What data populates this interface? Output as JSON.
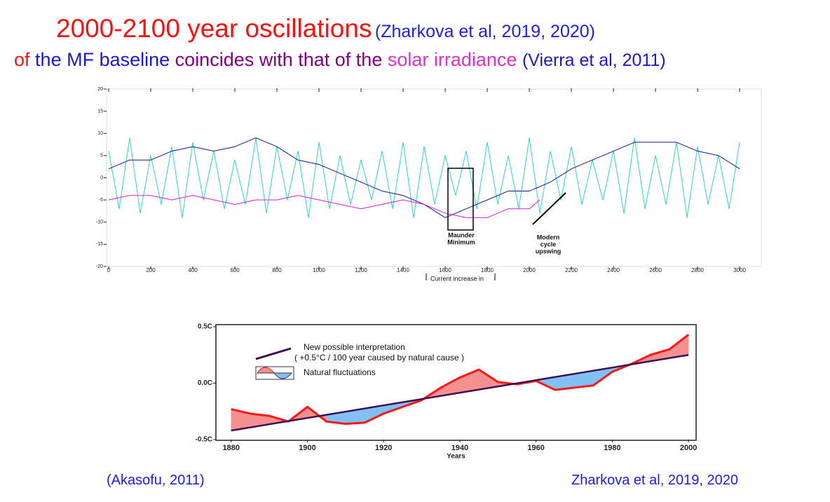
{
  "title": {
    "line1": [
      {
        "text": "2000-2100 year oscillations",
        "color": "#ff1010"
      },
      {
        "text": "(Zharkova et al, 2019, 2020)",
        "color": "#2020e0"
      }
    ],
    "line2": [
      {
        "text": "of",
        "color": "#ff1010"
      },
      {
        "text": "the MF baseline",
        "color": "#1a1acc"
      },
      {
        "text": "coincides with that of the",
        "color": "#800080"
      },
      {
        "text": "solar irradiance",
        "color": "#e030c8"
      },
      {
        "text": "(Vierra et al, 2011)",
        "color": "#1a1acc"
      }
    ]
  },
  "chart_data": [
    {
      "type": "line",
      "xlim": [
        -10,
        3103
      ],
      "ylim": [
        -20,
        20
      ],
      "xticks": [
        0,
        200,
        400,
        600,
        800,
        1000,
        1200,
        1400,
        1600,
        1800,
        2000,
        2200,
        2400,
        2600,
        2800,
        3000
      ],
      "yticks": [
        20,
        15,
        10,
        5,
        0,
        -5,
        -10,
        -15,
        -20
      ],
      "series": [
        {
          "color": "#30d0d0",
          "x": [
            0,
            50,
            100,
            150,
            200,
            250,
            300,
            350,
            400,
            450,
            500,
            550,
            600,
            650,
            700,
            750,
            800,
            850,
            900,
            950,
            1000,
            1050,
            1100,
            1150,
            1200,
            1250,
            1300,
            1350,
            1400,
            1450,
            1500,
            1550,
            1600,
            1650,
            1700,
            1750,
            1800,
            1850,
            1900,
            1950,
            2000,
            2050,
            2100,
            2150,
            2200,
            2250,
            2300,
            2350,
            2400,
            2450,
            2500,
            2550,
            2600,
            2650,
            2700,
            2750,
            2800,
            2850,
            2900,
            2950,
            3000
          ],
          "values": [
            6,
            -7,
            9,
            -8,
            5,
            -6,
            7,
            -9,
            8,
            -5,
            6,
            -7,
            4,
            -6,
            9,
            -8,
            7,
            -5,
            6,
            -9,
            8,
            -7,
            5,
            -6,
            4,
            -5,
            6,
            -7,
            8,
            -9,
            7,
            -6,
            5,
            -4,
            6,
            -7,
            8,
            -6,
            5,
            -7,
            9,
            -8,
            6,
            -5,
            7,
            -6,
            4,
            -5,
            6,
            -8,
            9,
            -7,
            5,
            -6,
            8,
            -9,
            7,
            -6,
            5,
            -7,
            8
          ]
        },
        {
          "color": "#0a1a8c",
          "x": [
            0,
            100,
            200,
            300,
            400,
            500,
            600,
            700,
            800,
            900,
            1000,
            1100,
            1200,
            1300,
            1400,
            1500,
            1600,
            1700,
            1800,
            1900,
            2000,
            2100,
            2200,
            2300,
            2400,
            2500,
            2600,
            2700,
            2800,
            2900,
            3000
          ],
          "values": [
            2,
            4,
            4,
            6,
            7,
            6,
            7,
            9,
            7,
            4,
            3,
            1,
            -1,
            -3,
            -4,
            -6,
            -9,
            -7,
            -5,
            -3,
            -3,
            -1,
            2,
            4,
            6,
            8,
            8,
            8,
            6,
            5,
            2
          ]
        },
        {
          "color": "#d020d0",
          "x": [
            0,
            100,
            200,
            300,
            400,
            500,
            600,
            700,
            800,
            900,
            1000,
            1100,
            1200,
            1300,
            1400,
            1500,
            1600,
            1700,
            1800,
            1900,
            2000,
            2050
          ],
          "values": [
            -5,
            -4,
            -4,
            -5,
            -4,
            -5,
            -6,
            -5,
            -5,
            -4,
            -5,
            -6,
            -7,
            -6,
            -5,
            -6,
            -8,
            -9,
            -9,
            -7,
            -7,
            -5
          ]
        }
      ],
      "annotations": [
        "Maunder",
        "Minimum",
        "Modern",
        "cycle",
        "upswing",
        "Current increase in"
      ]
    },
    {
      "type": "line",
      "xlim": [
        1876,
        2002
      ],
      "ylim": [
        -0.5,
        0.5
      ],
      "xticks": [
        1880,
        1900,
        1920,
        1940,
        1960,
        1980,
        2000
      ],
      "yticks": [
        {
          "value": 0.5,
          "label": "0.5C"
        },
        {
          "value": 0,
          "label": "0.0C"
        },
        {
          "value": -0.5,
          "label": "-0.5C"
        }
      ],
      "xlabel": "Years",
      "fill_above": "#f49090",
      "fill_below": "#80c0f4",
      "series": [
        {
          "name": "Natural fluctuations",
          "color": "#ff1818",
          "x": [
            1880,
            1885,
            1890,
            1895,
            1900,
            1905,
            1910,
            1915,
            1920,
            1925,
            1930,
            1935,
            1940,
            1945,
            1950,
            1955,
            1960,
            1965,
            1970,
            1975,
            1980,
            1985,
            1990,
            1995,
            2000
          ],
          "values": [
            -0.23,
            -0.27,
            -0.29,
            -0.34,
            -0.21,
            -0.34,
            -0.36,
            -0.35,
            -0.27,
            -0.21,
            -0.15,
            -0.04,
            0.05,
            0.12,
            0.01,
            -0.01,
            0.02,
            -0.06,
            -0.04,
            -0.02,
            0.1,
            0.17,
            0.25,
            0.3,
            0.43
          ]
        },
        {
          "name": "New possible interpretation",
          "color": "#3a1050",
          "x": [
            1880,
            2000
          ],
          "values": [
            -0.42,
            0.25
          ]
        }
      ],
      "legend_note": "( +0.5°C / 100 year caused by natural cause )"
    }
  ],
  "captions": [
    "(Akasofu, 2011)",
    "Zharkova et al, 2019, 2020"
  ]
}
